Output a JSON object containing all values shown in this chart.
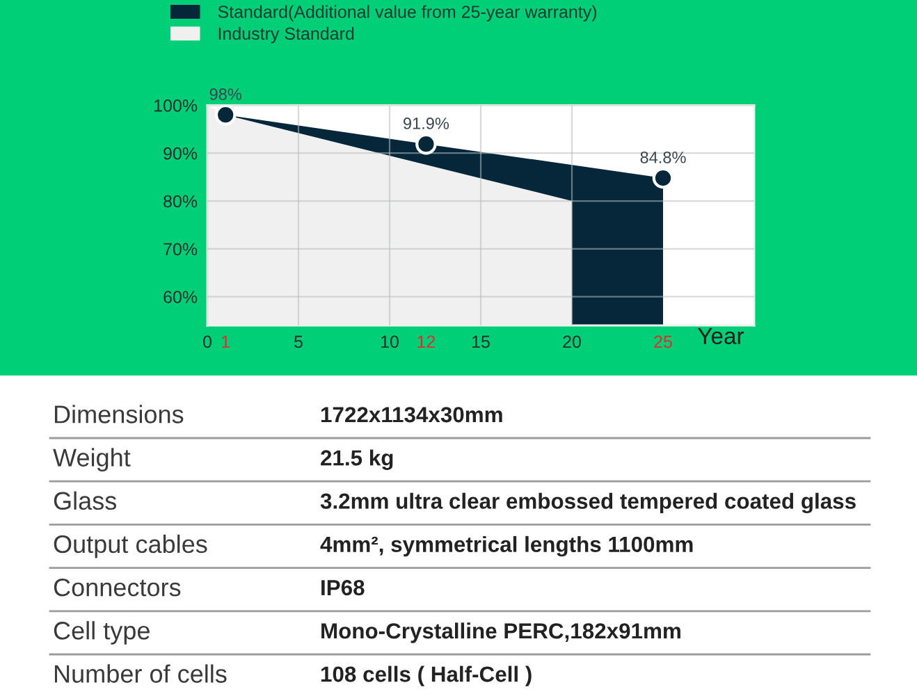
{
  "chart_data": [
    {
      "type": "area",
      "series": [
        {
          "name": "Standard(Additional value from 25-year warranty)",
          "color": "#062739",
          "x": [
            1,
            12,
            25
          ],
          "values": [
            98,
            91.9,
            84.8
          ],
          "value_labels": [
            "98%",
            "91.9%",
            "84.8%"
          ],
          "marker": "circle"
        },
        {
          "name": "Industry Standard",
          "color": "#f0f0f0",
          "x": [
            0,
            1,
            20
          ],
          "values": [
            100,
            98,
            80
          ]
        }
      ],
      "xlabel": "Year",
      "xlim": [
        0,
        30
      ],
      "xticks": [
        0,
        1,
        5,
        10,
        12,
        15,
        20,
        25
      ],
      "ylim": [
        54,
        100
      ],
      "yticks": [
        {
          "value": 60,
          "label": "60%"
        },
        {
          "value": 70,
          "label": "70%"
        },
        {
          "value": 80,
          "label": "80%"
        },
        {
          "value": 90,
          "label": "90%"
        },
        {
          "value": 100,
          "label": "100%"
        }
      ],
      "grid": true,
      "legend": "top left"
    },
    {
      "type": "other",
      "annotations": [
        "Dimensions",
        "1722x1134x30mm",
        "Weight",
        "21.5 kg",
        "Glass",
        "3.2mm ultra clear embossed tempered coated glass",
        "Output cables",
        "4mm², symmetrical lengths 1100mm",
        "Connectors",
        "IP68",
        "Cell type",
        "Mono-Crystalline PERC,182x91mm",
        "Number of cells",
        "108 cells ( Half-Cell )"
      ]
    }
  ]
}
